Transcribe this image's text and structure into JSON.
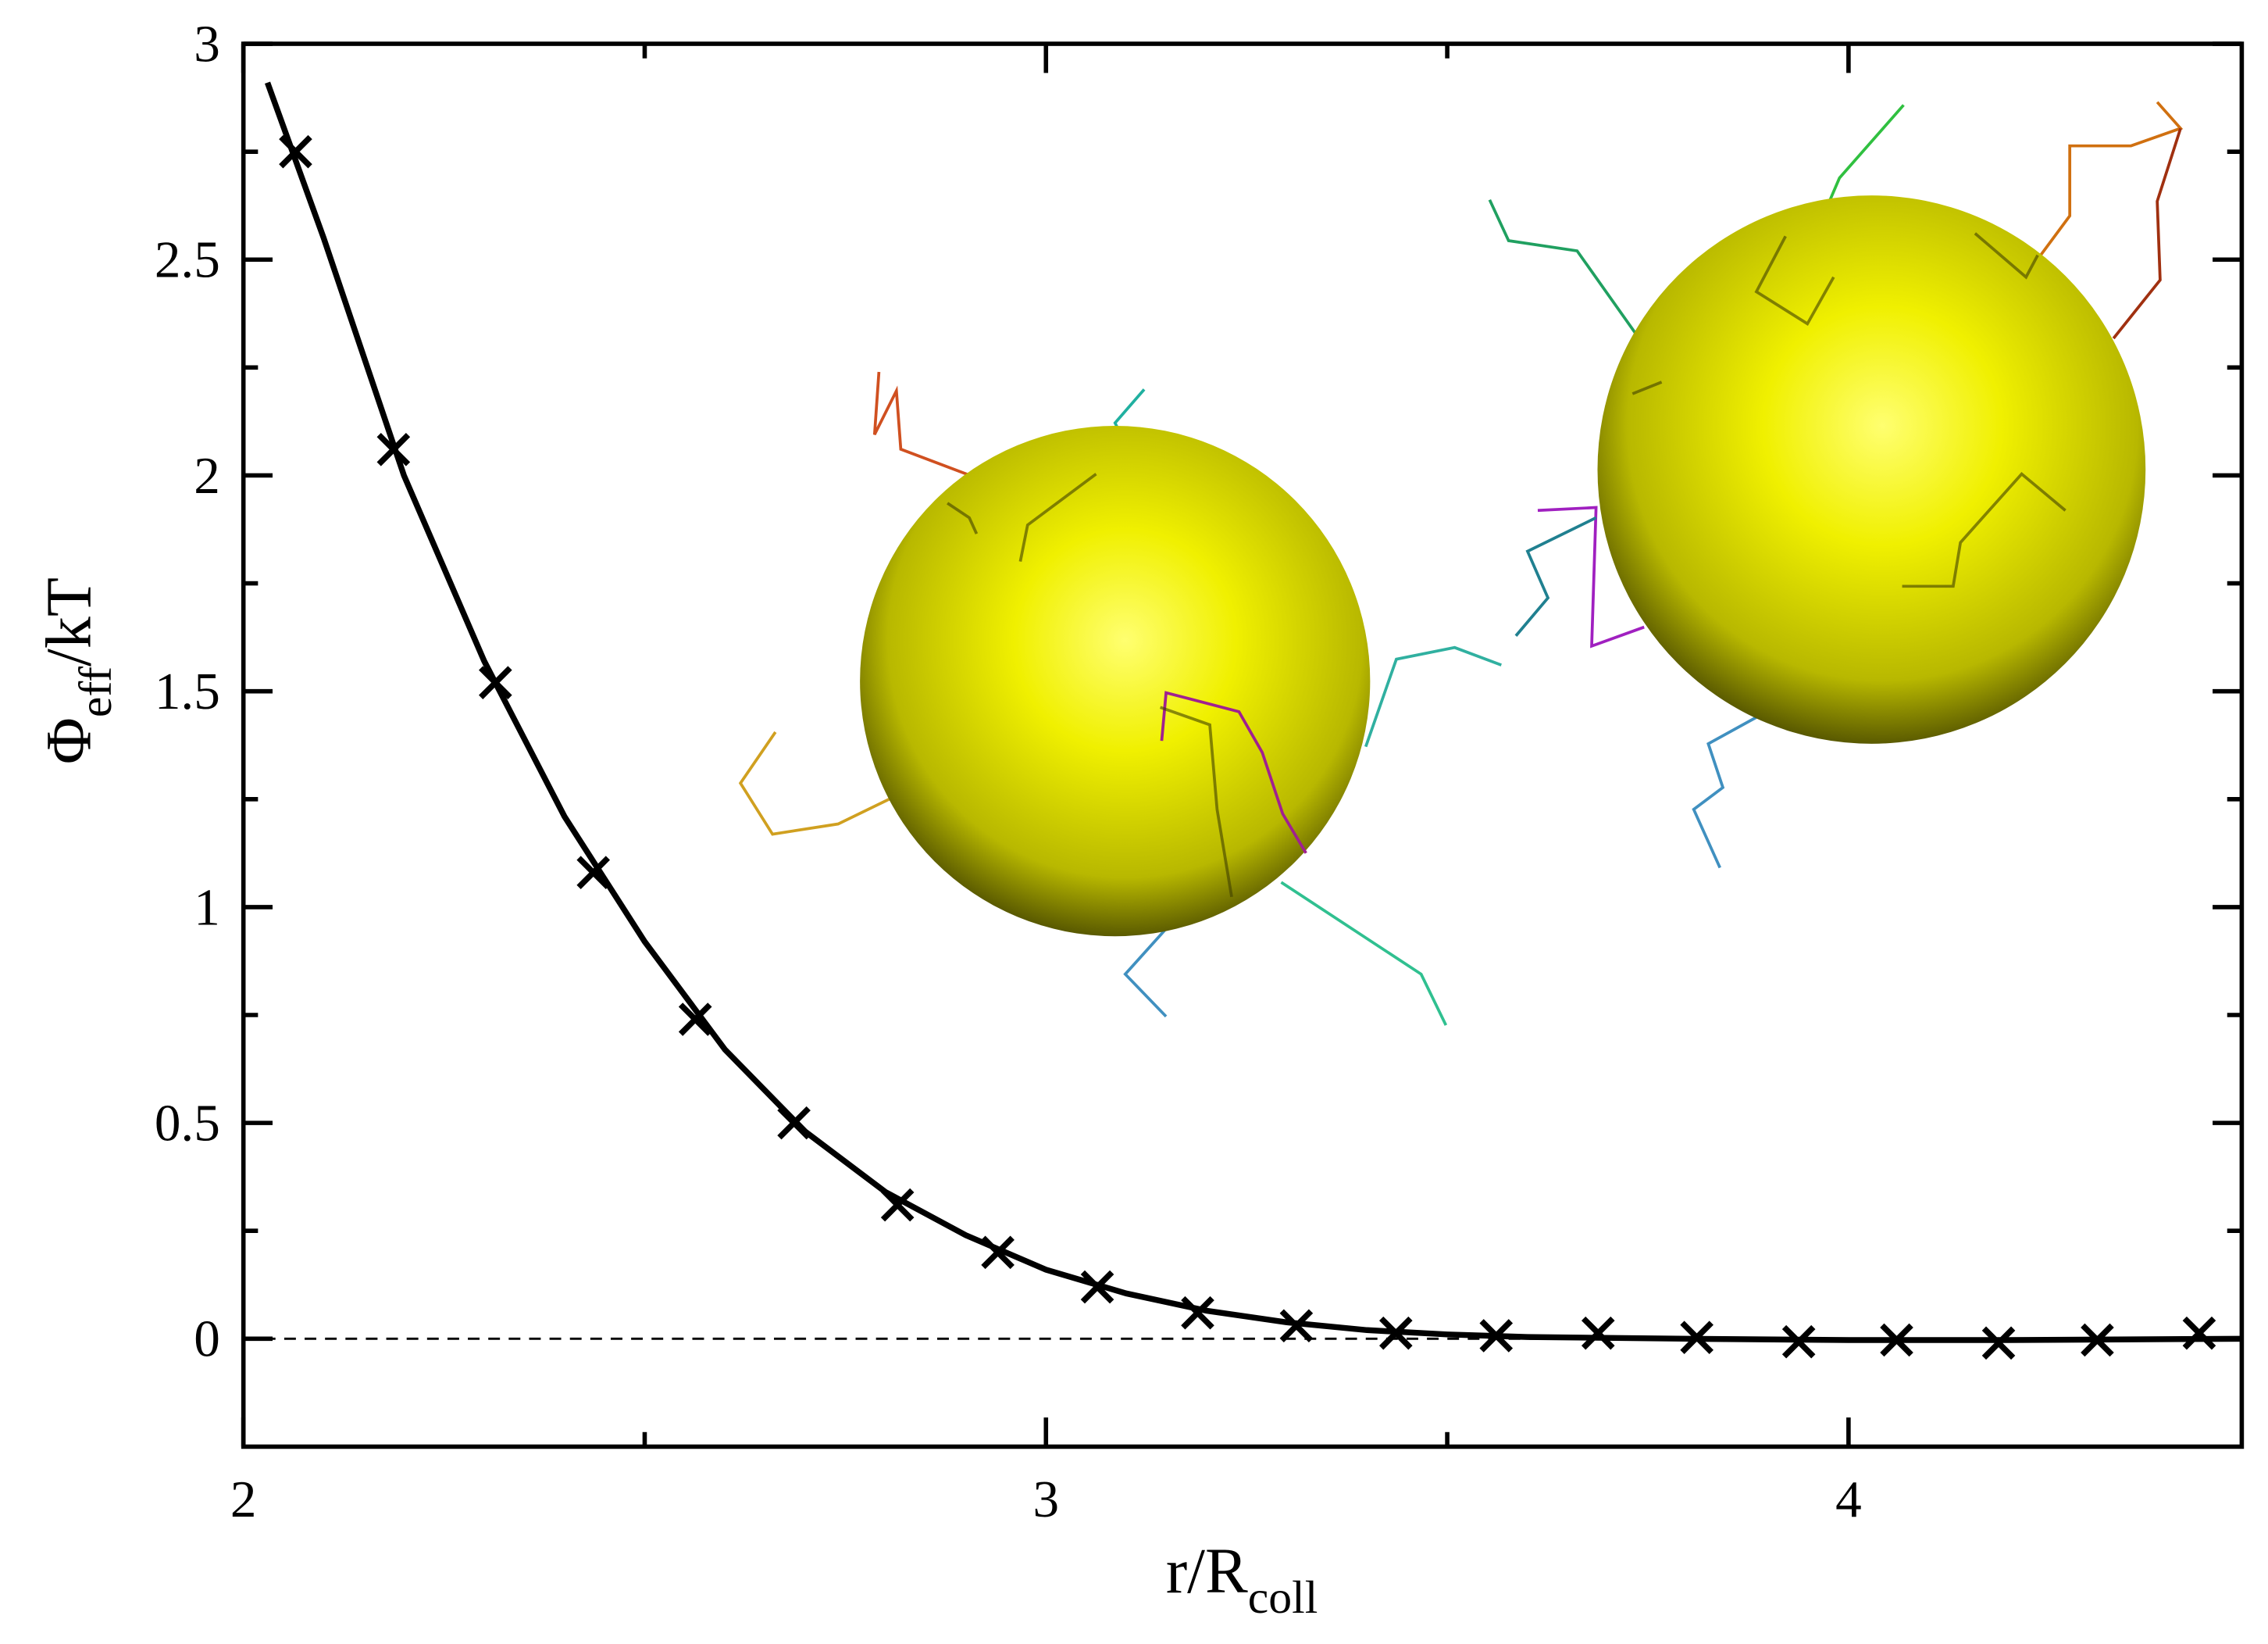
{
  "chart_data": {
    "type": "line",
    "xlabel": {
      "main": "r/R",
      "sub": "coll"
    },
    "ylabel": {
      "main": "Φ",
      "sub": "eff",
      "rest": "/kT"
    },
    "xlim": [
      2,
      4.49
    ],
    "ylim": [
      -0.25,
      3
    ],
    "xticks": [
      2,
      3,
      4
    ],
    "xminor": [
      2.5,
      3.5
    ],
    "yticks": [
      0,
      0.5,
      1,
      1.5,
      2,
      2.5,
      3
    ],
    "yminor": [
      0.25,
      0.75,
      1.25,
      1.75,
      2.25,
      2.75
    ],
    "hline": 0,
    "series": [
      {
        "kind": "line",
        "color": "#000000",
        "x": [
          2.03,
          2.1,
          2.2,
          2.3,
          2.4,
          2.5,
          2.6,
          2.7,
          2.8,
          2.9,
          3.0,
          3.1,
          3.2,
          3.3,
          3.4,
          3.5,
          3.6,
          3.8,
          4.0,
          4.2,
          4.49
        ],
        "values": [
          2.91,
          2.55,
          2.0,
          1.57,
          1.21,
          0.92,
          0.67,
          0.48,
          0.34,
          0.24,
          0.16,
          0.105,
          0.065,
          0.038,
          0.02,
          0.01,
          0.004,
          0.0,
          -0.003,
          -0.003,
          0.0
        ]
      },
      {
        "kind": "scatter",
        "color": "#000000",
        "x": [
          2.065,
          2.187,
          2.314,
          2.436,
          2.563,
          2.686,
          2.815,
          2.94,
          3.064,
          3.189,
          3.312,
          3.436,
          3.561,
          3.688,
          3.811,
          3.938,
          4.06,
          4.187,
          4.31,
          4.437
        ],
        "values": [
          2.75,
          2.06,
          1.52,
          1.08,
          0.74,
          0.5,
          0.31,
          0.2,
          0.12,
          0.06,
          0.03,
          0.013,
          0.007,
          0.013,
          0.003,
          -0.007,
          -0.003,
          -0.01,
          -0.003,
          0.013
        ]
      }
    ]
  }
}
